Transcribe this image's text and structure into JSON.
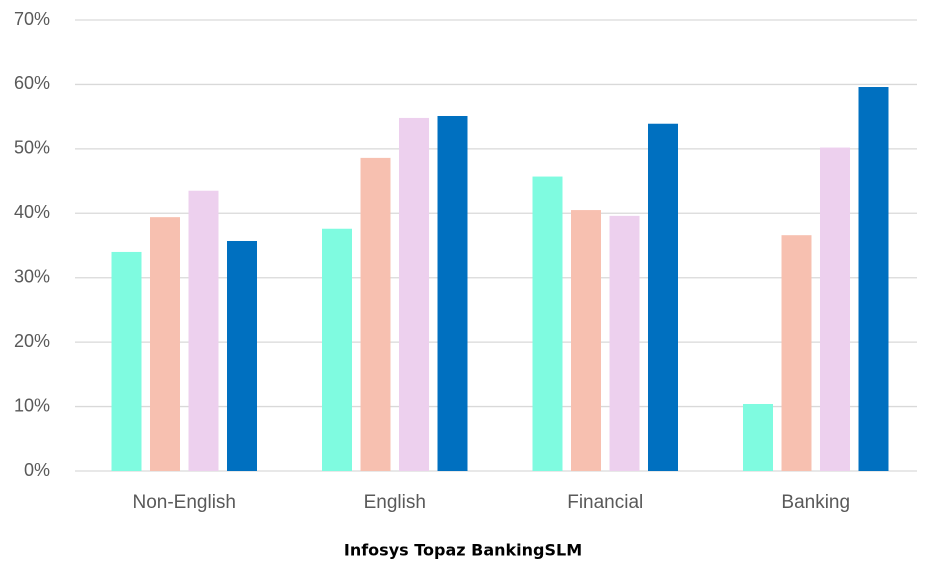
{
  "chart_data": {
    "type": "bar",
    "title": "Infosys Topaz BankingSLM",
    "categories": [
      "Non-English",
      "English",
      "Financial",
      "Banking"
    ],
    "series": [
      {
        "color": "#7ffbe0",
        "values": [
          34.0,
          37.6,
          45.7,
          10.4
        ]
      },
      {
        "color": "#f7c0b0",
        "values": [
          39.4,
          48.6,
          40.5,
          36.6
        ]
      },
      {
        "color": "#edd0ee",
        "values": [
          43.5,
          54.8,
          39.6,
          50.2
        ]
      },
      {
        "color": "#0070c0",
        "values": [
          35.7,
          55.1,
          53.9,
          59.6
        ]
      }
    ],
    "ylim": [
      0,
      70
    ],
    "yticks": [
      {
        "value": 0,
        "label": "0%"
      },
      {
        "value": 10,
        "label": "10%"
      },
      {
        "value": 20,
        "label": "20%"
      },
      {
        "value": 30,
        "label": "30%"
      },
      {
        "value": 40,
        "label": "40%"
      },
      {
        "value": 50,
        "label": "50%"
      },
      {
        "value": 60,
        "label": "60%"
      },
      {
        "value": 70,
        "label": "70%"
      }
    ],
    "grid": true
  }
}
